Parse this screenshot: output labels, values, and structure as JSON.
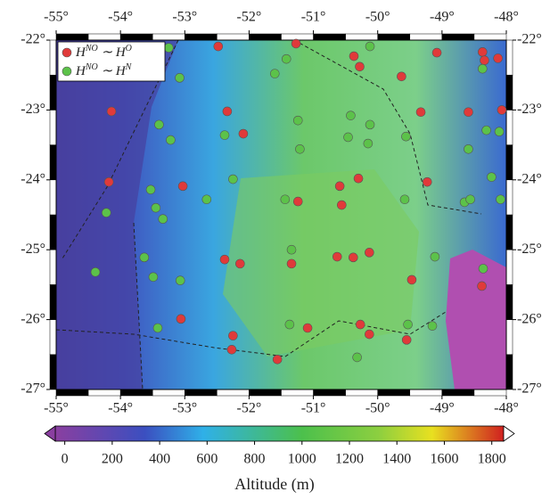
{
  "chart_data": {
    "type": "scatter",
    "xlim": [
      -55,
      -48
    ],
    "ylim": [
      -27,
      -22
    ],
    "xticks": [
      {
        "value": -55,
        "label": "-55°"
      },
      {
        "value": -54,
        "label": "-54°"
      },
      {
        "value": -53,
        "label": "-53°"
      },
      {
        "value": -52,
        "label": "-52°"
      },
      {
        "value": -51,
        "label": "-51°"
      },
      {
        "value": -50,
        "label": "-50°"
      },
      {
        "value": -49,
        "label": "-49°"
      },
      {
        "value": -48,
        "label": "-48°"
      }
    ],
    "yticks": [
      {
        "value": -27,
        "label": "-27°"
      },
      {
        "value": -26,
        "label": "-26°"
      },
      {
        "value": -25,
        "label": "-25°"
      },
      {
        "value": -24,
        "label": "-24°"
      },
      {
        "value": -23,
        "label": "-23°"
      },
      {
        "value": -22,
        "label": "-22°"
      }
    ],
    "legend": "upper left",
    "series": [
      {
        "name": "HNO ∼ HO",
        "color": "#e03a3a",
        "x": [
          -52.48,
          -51.27,
          -50.37,
          -50.28,
          -49.63,
          -49.08,
          -48.37,
          -48.34,
          -48.13,
          -54.14,
          -52.34,
          -52.09,
          -49.33,
          -48.59,
          -48.07,
          -54.18,
          -53.03,
          -51.24,
          -50.59,
          -50.3,
          -50.56,
          -49.23,
          -52.38,
          -52.14,
          -51.34,
          -50.63,
          -50.38,
          -50.13,
          -49.47,
          -48.38,
          -53.06,
          -52.25,
          -52.27,
          -51.09,
          -50.27,
          -50.13,
          -49.55,
          -51.56
        ],
        "values": [
          -22.09,
          -22.05,
          -22.23,
          -22.38,
          -22.52,
          -22.18,
          -22.17,
          -22.29,
          -22.26,
          -23.02,
          -23.02,
          -23.34,
          -23.03,
          -23.03,
          -23.0,
          -24.03,
          -24.09,
          -24.31,
          -24.09,
          -23.98,
          -24.36,
          -24.03,
          -25.14,
          -25.2,
          -25.2,
          -25.1,
          -25.11,
          -25.04,
          -25.43,
          -25.52,
          -25.99,
          -26.23,
          -26.43,
          -26.12,
          -26.07,
          -26.21,
          -26.29,
          -26.57
        ]
      },
      {
        "name": "HNO ∼ HN",
        "color": "#5cc24a",
        "x": [
          -53.25,
          -53.08,
          -51.42,
          -51.6,
          -50.12,
          -48.37,
          -53.4,
          -53.22,
          -51.24,
          -52.38,
          -50.42,
          -50.12,
          -50.46,
          -50.15,
          -49.56,
          -48.59,
          -48.31,
          -48.11,
          -53.53,
          -53.45,
          -53.34,
          -54.22,
          -52.66,
          -52.25,
          -51.21,
          -49.58,
          -48.65,
          -48.56,
          -48.23,
          -48.09,
          -51.44,
          -51.34,
          -53.63,
          -54.39,
          -53.49,
          -53.07,
          -49.11,
          -48.36,
          -53.42,
          -51.37,
          -49.53,
          -49.15,
          -50.32
        ],
        "values": [
          -22.11,
          -22.54,
          -22.27,
          -22.48,
          -22.09,
          -22.41,
          -23.21,
          -23.43,
          -23.15,
          -23.36,
          -23.08,
          -23.21,
          -23.39,
          -23.48,
          -23.38,
          -23.56,
          -23.29,
          -23.31,
          -24.14,
          -24.4,
          -24.56,
          -24.47,
          -24.28,
          -23.99,
          -23.56,
          -24.28,
          -24.32,
          -24.28,
          -23.96,
          -24.28,
          -24.28,
          -25.0,
          -25.11,
          -25.32,
          -25.39,
          -25.44,
          -25.1,
          -25.27,
          -26.12,
          -26.07,
          -26.07,
          -26.09,
          -26.54
        ]
      }
    ],
    "colorbar": {
      "label": "Altitude (m)",
      "lim": [
        -40,
        1850
      ],
      "ticks": [
        0,
        200,
        400,
        600,
        800,
        1000,
        1200,
        1400,
        1600,
        1800
      ]
    }
  }
}
